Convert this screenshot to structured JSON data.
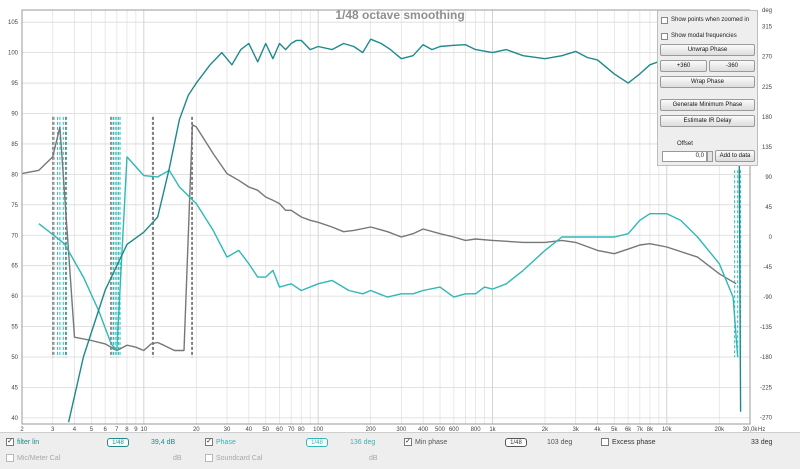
{
  "chart_data": {
    "type": "line",
    "title": "1/48 octave smoothing",
    "xscale": "log",
    "xlim": [
      2,
      30000
    ],
    "x_unit": "Hz",
    "ylim_left": [
      39,
      107
    ],
    "ylim_right": [
      -280,
      340
    ],
    "y_ticks_left": [
      40,
      45,
      50,
      55,
      60,
      65,
      70,
      75,
      80,
      85,
      90,
      95,
      100,
      105
    ],
    "y_ticks_right": [
      -270,
      -225,
      -180,
      -135,
      -90,
      -45,
      0,
      45,
      90,
      135,
      180,
      225,
      270,
      315
    ],
    "y_unit_right": "deg",
    "x_ticks": [
      2,
      3,
      4,
      5,
      6,
      7,
      8,
      9,
      10,
      20,
      30,
      40,
      50,
      60,
      70,
      80,
      100,
      200,
      300,
      400,
      500,
      600,
      800,
      1000,
      2000,
      3000,
      4000,
      5000,
      6000,
      7000,
      8000,
      10000,
      20000,
      30000
    ],
    "x_tick_labels": [
      "2",
      "3",
      "4",
      "5",
      "6",
      "7",
      "8",
      "9",
      "10",
      "20",
      "30",
      "40",
      "50",
      "60",
      "70",
      "80",
      "100",
      "200",
      "300",
      "400",
      "500",
      "600",
      "800",
      "1k",
      "2k",
      "3k",
      "4k",
      "5k",
      "6k",
      "7k",
      "8k",
      "10k",
      "20k",
      "30,0k"
    ],
    "grid": true,
    "series": [
      {
        "name": "filter lin",
        "axis": "left",
        "color": "#1e8a8a",
        "x": [
          3.7,
          4.5,
          6,
          8,
          10,
          12,
          14,
          16,
          18,
          20,
          24,
          28,
          32,
          36,
          40,
          45,
          50,
          55,
          60,
          65,
          70,
          75,
          80,
          90,
          100,
          120,
          140,
          160,
          180,
          200,
          230,
          260,
          300,
          350,
          400,
          450,
          500,
          600,
          700,
          800,
          1000,
          1200,
          1500,
          2000,
          2500,
          3000,
          3500,
          4000,
          5000,
          6000,
          7000,
          8000,
          10000,
          12000,
          15000,
          20000,
          23000,
          26000,
          26500
        ],
        "values": [
          39.3,
          50,
          61,
          68.5,
          70.5,
          73,
          81,
          89,
          93,
          95,
          98,
          100,
          98,
          100.5,
          101.5,
          98.5,
          101.5,
          99,
          101.5,
          100.5,
          101.5,
          102,
          102,
          100.5,
          101,
          100.5,
          101.5,
          101,
          100,
          102.2,
          101.5,
          100.5,
          99,
          99.5,
          101.3,
          100.5,
          101,
          101.2,
          101.3,
          100.5,
          100,
          100.5,
          99.5,
          99,
          99.5,
          100.2,
          99.2,
          98.8,
          96.5,
          95,
          96.5,
          98,
          99,
          97,
          95,
          94,
          92,
          84,
          41
        ]
      },
      {
        "name": "Phase",
        "axis": "right",
        "color": "#2fb8b8",
        "x": [
          2.5,
          3.5,
          4.5,
          5.5,
          6.5,
          7,
          8,
          10,
          12,
          14,
          16,
          20,
          25,
          30,
          35,
          40,
          45,
          50,
          55,
          60,
          70,
          80,
          100,
          120,
          150,
          180,
          200,
          250,
          300,
          350,
          400,
          500,
          600,
          700,
          800,
          900,
          1000,
          1200,
          1500,
          2000,
          2500,
          3000,
          3500,
          4000,
          5000,
          6000,
          7000,
          8000,
          9000,
          10000,
          12000,
          15000,
          20000,
          24000,
          25500
        ],
        "values": [
          20,
          -10,
          -60,
          -110,
          -160,
          -170,
          120,
          92,
          90,
          100,
          75,
          50,
          10,
          -30,
          -20,
          -40,
          -60,
          -60,
          -50,
          -75,
          -70,
          -80,
          -70,
          -65,
          -80,
          -85,
          -80,
          -90,
          -85,
          -85,
          -80,
          -75,
          -90,
          -85,
          -85,
          -75,
          -78,
          -70,
          -50,
          -20,
          0,
          0,
          0,
          0,
          0,
          5,
          25,
          35,
          35,
          35,
          25,
          0,
          -40,
          -90,
          -180
        ]
      },
      {
        "name": "Min phase",
        "axis": "right",
        "color": "#777777",
        "x": [
          2,
          2.5,
          3,
          3.3,
          4,
          5,
          6,
          7,
          8,
          9,
          10,
          11,
          12,
          13,
          15,
          17,
          19,
          20,
          25,
          30,
          35,
          40,
          45,
          50,
          55,
          60,
          65,
          70,
          80,
          90,
          100,
          120,
          140,
          160,
          200,
          250,
          300,
          350,
          400,
          500,
          600,
          700,
          800,
          1000,
          1500,
          2000,
          2500,
          3000,
          4000,
          5000,
          6000,
          7000,
          8000,
          10000,
          15000,
          20000,
          25000
        ],
        "values": [
          95,
          100,
          120,
          165,
          -150,
          -155,
          -160,
          -170,
          -162,
          -165,
          -170,
          -160,
          -158,
          -162,
          -170,
          -170,
          168,
          165,
          125,
          95,
          85,
          75,
          70,
          60,
          55,
          50,
          40,
          40,
          30,
          25,
          22,
          15,
          8,
          10,
          15,
          8,
          0,
          5,
          12,
          5,
          0,
          -5,
          -3,
          -5,
          -8,
          -8,
          -5,
          -8,
          -20,
          -25,
          -18,
          -12,
          -10,
          -15,
          -30,
          -55,
          -70
        ]
      }
    ]
  },
  "panel": {
    "show_points_label": "Show points when zoomed in",
    "show_modal_label": "Show modal frequencies",
    "unwrap_label": "Unwrap Phase",
    "plus360_label": "+360",
    "minus360_label": "-360",
    "wrap_label": "Wrap Phase",
    "gen_min_phase_label": "Generate Minimum Phase",
    "estimate_ir_label": "Estimate IR Delay",
    "offset_label": "Offset",
    "offset_value": "0,0",
    "add_to_data_label": "Add to data"
  },
  "legend": {
    "row1": [
      {
        "label": "filter lin",
        "checked": true,
        "smoothing": "1/48",
        "value": "39,4 dB"
      },
      {
        "label": "Phase",
        "checked": true,
        "smoothing": "1/48",
        "value": "136 deg"
      },
      {
        "label": "Min phase",
        "checked": true,
        "smoothing": "1/48",
        "value": "103 deg"
      },
      {
        "label": "Excess phase",
        "checked": false,
        "value": "33 deg"
      }
    ],
    "row2": [
      {
        "label": "Mic/Meter Cal",
        "checked": false,
        "unit": "dB"
      },
      {
        "label": "Soundcard Cal",
        "checked": false,
        "unit": "dB"
      }
    ]
  }
}
